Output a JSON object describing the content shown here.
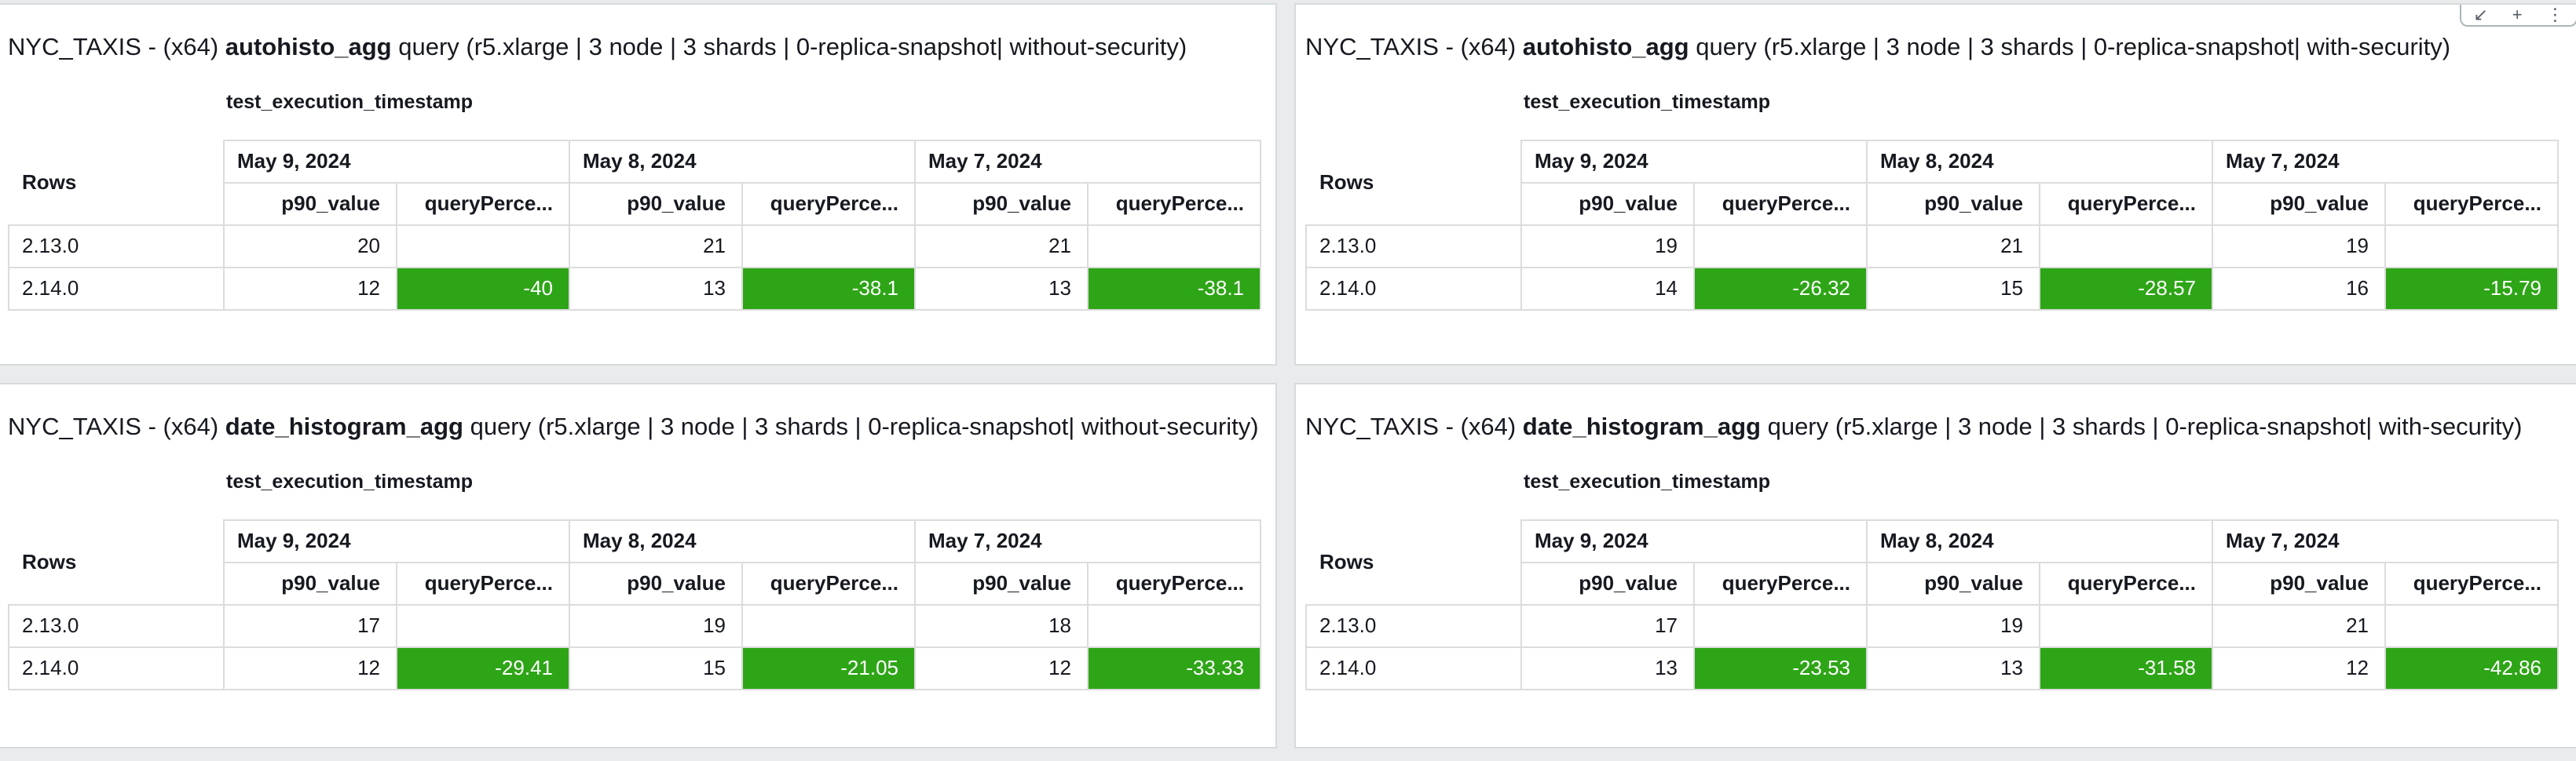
{
  "colors": {
    "positive_change": "#2ea517",
    "panel_bg": "#ffffff",
    "page_bg": "#e9ebed"
  },
  "column_field": "test_execution_timestamp",
  "rows_label": "Rows",
  "dates": [
    "May 9, 2024",
    "May 8, 2024",
    "May 7, 2024"
  ],
  "measure_headers": [
    "p90_value",
    "queryPerce..."
  ],
  "toolbar": {
    "icons": [
      "collapse-icon",
      "add-icon",
      "more-options-icon"
    ]
  },
  "panels": [
    {
      "title_prefix": "NYC_TAXIS - (x64) ",
      "title_bold": "autohisto_agg",
      "title_suffix": " query (r5.xlarge | 3 node | 3 shards | 0-replica-snapshot| without-security)",
      "rows": [
        {
          "label": "2.13.0",
          "cells": [
            "20",
            "",
            "21",
            "",
            "21",
            ""
          ]
        },
        {
          "label": "2.14.0",
          "cells": [
            "12",
            "-40",
            "13",
            "-38.1",
            "13",
            "-38.1"
          ]
        }
      ]
    },
    {
      "title_prefix": "NYC_TAXIS - (x64) ",
      "title_bold": "autohisto_agg",
      "title_suffix": " query (r5.xlarge | 3 node | 3 shards | 0-replica-snapshot| with-security)",
      "rows": [
        {
          "label": "2.13.0",
          "cells": [
            "19",
            "",
            "21",
            "",
            "19",
            ""
          ]
        },
        {
          "label": "2.14.0",
          "cells": [
            "14",
            "-26.32",
            "15",
            "-28.57",
            "16",
            "-15.79"
          ]
        }
      ]
    },
    {
      "title_prefix": "NYC_TAXIS - (x64) ",
      "title_bold": "date_histogram_agg",
      "title_suffix": " query (r5.xlarge | 3 node | 3 shards | 0-replica-snapshot| without-security)",
      "rows": [
        {
          "label": "2.13.0",
          "cells": [
            "17",
            "",
            "19",
            "",
            "18",
            ""
          ]
        },
        {
          "label": "2.14.0",
          "cells": [
            "12",
            "-29.41",
            "15",
            "-21.05",
            "12",
            "-33.33"
          ]
        }
      ]
    },
    {
      "title_prefix": "NYC_TAXIS - (x64) ",
      "title_bold": "date_histogram_agg",
      "title_suffix": " query (r5.xlarge | 3 node | 3 shards | 0-replica-snapshot| with-security)",
      "rows": [
        {
          "label": "2.13.0",
          "cells": [
            "17",
            "",
            "19",
            "",
            "21",
            ""
          ]
        },
        {
          "label": "2.14.0",
          "cells": [
            "13",
            "-23.53",
            "13",
            "-31.58",
            "12",
            "-42.86"
          ]
        }
      ]
    }
  ]
}
